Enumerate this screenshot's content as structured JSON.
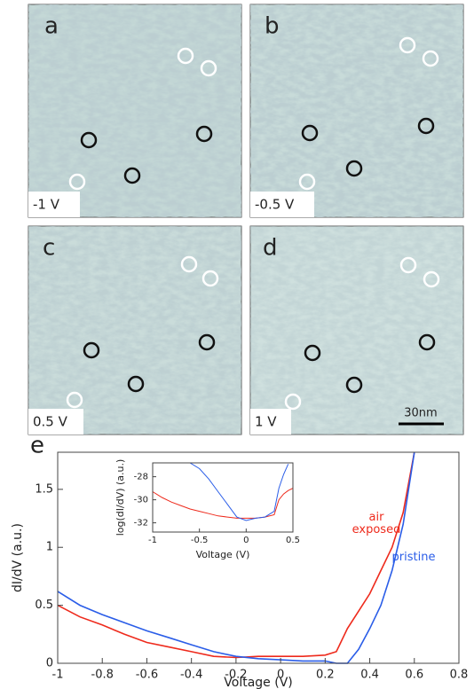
{
  "panels": [
    {
      "letter": "a",
      "voltage": "-1 V"
    },
    {
      "letter": "b",
      "voltage": "-0.5 V"
    },
    {
      "letter": "c",
      "voltage": "0.5 V"
    },
    {
      "letter": "d",
      "voltage": "1 V"
    }
  ],
  "scale_bar": "30nm",
  "chart_panel_label": "e",
  "chart_data": [
    {
      "type": "line",
      "x_label": "Voltage (V)",
      "y_label": "dI/dV (a.u.)",
      "x": [
        -1,
        -0.9,
        -0.8,
        -0.7,
        -0.6,
        -0.5,
        -0.4,
        -0.3,
        -0.2,
        -0.1,
        0,
        0.1,
        0.2,
        0.25,
        0.3,
        0.35,
        0.4,
        0.45,
        0.5,
        0.55,
        0.6
      ],
      "series": [
        {
          "name": "air exposed",
          "color": "#ee2a1c",
          "values": [
            0.5,
            0.4,
            0.33,
            0.25,
            0.18,
            0.14,
            0.1,
            0.06,
            0.05,
            0.06,
            0.06,
            0.06,
            0.07,
            0.1,
            0.3,
            0.45,
            0.6,
            0.8,
            1.0,
            1.3,
            1.82
          ]
        },
        {
          "name": "pristine",
          "color": "#2a5de8",
          "values": [
            0.62,
            0.5,
            0.42,
            0.35,
            0.28,
            0.22,
            0.16,
            0.1,
            0.06,
            0.04,
            0.03,
            0.02,
            0.02,
            0.0,
            0.0,
            0.12,
            0.3,
            0.5,
            0.8,
            1.2,
            1.82
          ]
        }
      ],
      "xlim": [
        -1,
        0.8
      ],
      "xticks": [
        -1,
        -0.8,
        -0.6,
        -0.4,
        -0.2,
        0,
        0.2,
        0.4,
        0.6,
        0.8
      ],
      "ylim": [
        0,
        1.82
      ],
      "yticks": [
        0,
        0.5,
        1,
        1.5
      ]
    },
    {
      "type": "line",
      "x_label": "Voltage (V)",
      "y_label": "log(dI/dV) (a.u.)",
      "x": [
        -1,
        -0.9,
        -0.8,
        -0.7,
        -0.6,
        -0.5,
        -0.4,
        -0.3,
        -0.2,
        -0.1,
        0,
        0.1,
        0.2,
        0.3,
        0.35,
        0.4,
        0.45,
        0.5
      ],
      "series": [
        {
          "color": "#ee2a1c",
          "values": [
            -29.3,
            -29.8,
            -30.2,
            -30.5,
            -30.8,
            -31.0,
            -31.2,
            -31.4,
            -31.5,
            -31.6,
            -31.6,
            -31.6,
            -31.5,
            -31.3,
            -30.0,
            -29.5,
            -29.2,
            -29.0
          ]
        },
        {
          "color": "#2a5de8",
          "values": [
            -26.8,
            -26.8,
            -26.8,
            -26.8,
            -26.8,
            -27.3,
            -28.2,
            -29.3,
            -30.4,
            -31.5,
            -31.8,
            -31.6,
            -31.5,
            -31.0,
            -29.0,
            -27.8,
            -26.9,
            null
          ]
        }
      ],
      "xlim": [
        -1,
        0.5
      ],
      "xticks": [
        -1,
        -0.5,
        0,
        0.5
      ],
      "ylim": [
        -32.8,
        -26.8
      ],
      "yticks": [
        -32,
        -30,
        -28
      ]
    }
  ]
}
